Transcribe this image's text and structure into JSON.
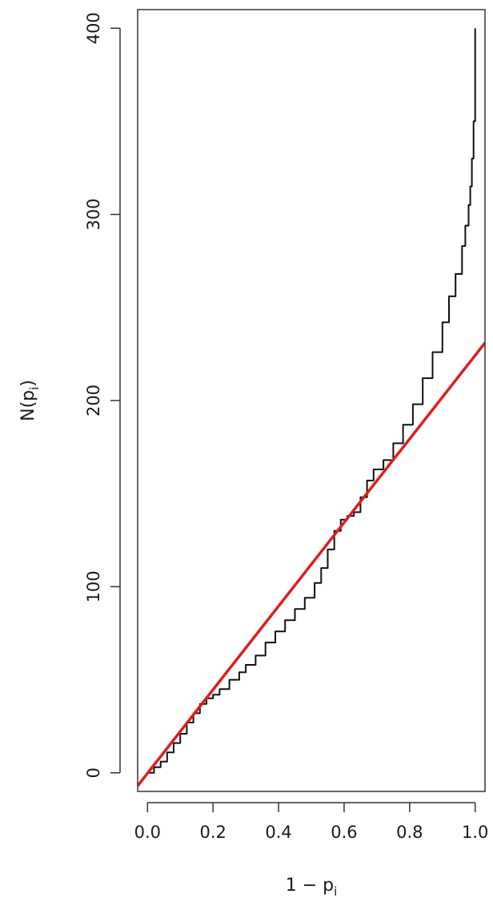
{
  "chart_data": {
    "type": "line",
    "title": "",
    "xlabel": {
      "main": "1 − p",
      "sub": "i"
    },
    "ylabel": {
      "main": "N(p",
      "sub": "i",
      "close": ")"
    },
    "xlim": [
      -0.03,
      1.03
    ],
    "ylim": [
      -10,
      410
    ],
    "x_ticks": [
      0.0,
      0.2,
      0.4,
      0.6,
      0.8,
      1.0
    ],
    "x_tick_labels": [
      "0.0",
      "0.2",
      "0.4",
      "0.6",
      "0.8",
      "1.0"
    ],
    "y_ticks": [
      0,
      100,
      200,
      300,
      400
    ],
    "y_tick_labels": [
      "0",
      "100",
      "200",
      "300",
      "400"
    ],
    "grid": false,
    "series": [
      {
        "color": "#111111",
        "style": "step",
        "points": [
          [
            0.0,
            0
          ],
          [
            0.02,
            3
          ],
          [
            0.04,
            6
          ],
          [
            0.06,
            11
          ],
          [
            0.08,
            16
          ],
          [
            0.1,
            21
          ],
          [
            0.12,
            27
          ],
          [
            0.14,
            32
          ],
          [
            0.16,
            37
          ],
          [
            0.18,
            40
          ],
          [
            0.2,
            42
          ],
          [
            0.22,
            45
          ],
          [
            0.25,
            50
          ],
          [
            0.28,
            54
          ],
          [
            0.3,
            58
          ],
          [
            0.33,
            63
          ],
          [
            0.36,
            70
          ],
          [
            0.39,
            76
          ],
          [
            0.42,
            82
          ],
          [
            0.45,
            88
          ],
          [
            0.48,
            94
          ],
          [
            0.51,
            102
          ],
          [
            0.53,
            110
          ],
          [
            0.55,
            120
          ],
          [
            0.57,
            130
          ],
          [
            0.59,
            136
          ],
          [
            0.61,
            138
          ],
          [
            0.63,
            140
          ],
          [
            0.65,
            148
          ],
          [
            0.67,
            157
          ],
          [
            0.69,
            163
          ],
          [
            0.72,
            168
          ],
          [
            0.75,
            177
          ],
          [
            0.78,
            187
          ],
          [
            0.81,
            198
          ],
          [
            0.84,
            212
          ],
          [
            0.87,
            226
          ],
          [
            0.9,
            242
          ],
          [
            0.92,
            256
          ],
          [
            0.94,
            268
          ],
          [
            0.96,
            283
          ],
          [
            0.97,
            294
          ],
          [
            0.98,
            305
          ],
          [
            0.985,
            315
          ],
          [
            0.99,
            330
          ],
          [
            0.995,
            350
          ],
          [
            1.0,
            400
          ]
        ]
      },
      {
        "color": "#dd1f1f",
        "style": "line",
        "points": [
          [
            -0.03,
            -7
          ],
          [
            1.03,
            231
          ]
        ]
      }
    ]
  }
}
